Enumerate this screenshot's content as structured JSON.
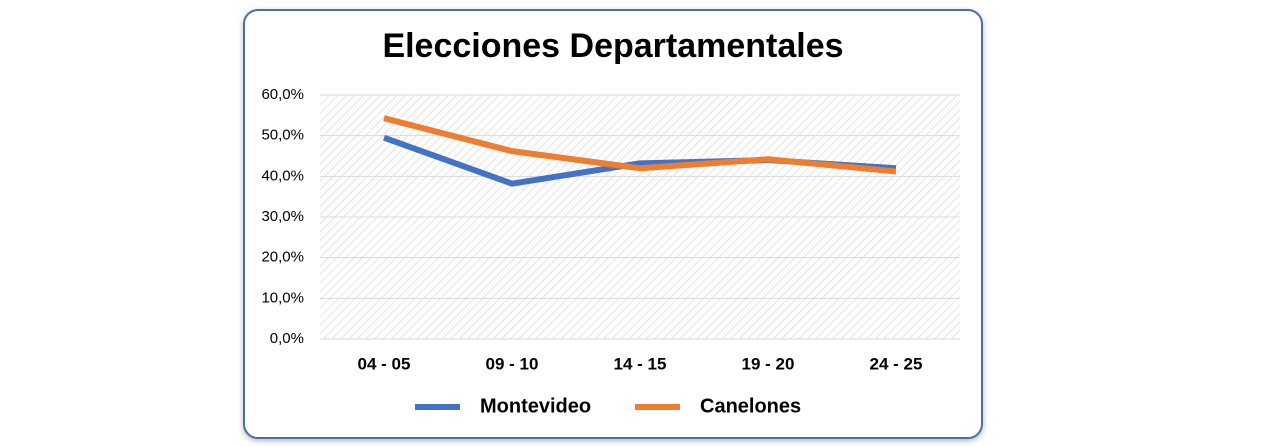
{
  "chart_data": {
    "type": "line",
    "title": "Elecciones Departamentales",
    "categories": [
      "04 - 05",
      "09 - 10",
      "14 - 15",
      "19 - 20",
      "24 - 25"
    ],
    "series": [
      {
        "name": "Montevideo",
        "color": "#4472c4",
        "values": [
          49.5,
          38.2,
          43.2,
          44.0,
          42.0
        ]
      },
      {
        "name": "Canelones",
        "color": "#ed7d31",
        "values": [
          54.3,
          46.2,
          42.0,
          44.2,
          41.2
        ]
      }
    ],
    "ylim": [
      0,
      60
    ],
    "yticks": [
      {
        "value": 0,
        "label": "0,0%"
      },
      {
        "value": 10,
        "label": "10,0%"
      },
      {
        "value": 20,
        "label": "20,0%"
      },
      {
        "value": 30,
        "label": "30,0%"
      },
      {
        "value": 40,
        "label": "40,0%"
      },
      {
        "value": 50,
        "label": "50,0%"
      },
      {
        "value": 60,
        "label": "60,0%"
      }
    ],
    "grid": true,
    "legend": "bottom"
  }
}
